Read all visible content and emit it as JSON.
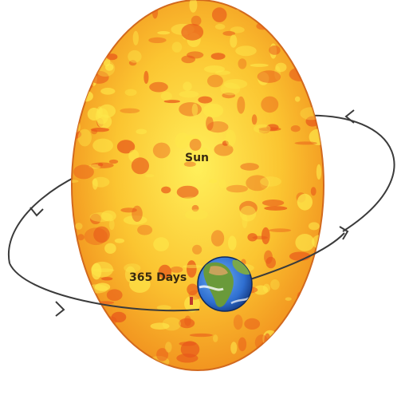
{
  "sun": {
    "label": "Sun"
  },
  "earth": {
    "orbit_label": "365 Days"
  },
  "colors": {
    "sun_base": "#f7a21b",
    "sun_spot_dark": "#e8561a",
    "sun_spot_light": "#fde84a",
    "orbit": "#3b3b3b",
    "ocean": "#2f6fd1",
    "land": "#6a9a3a",
    "desert": "#c9a35b",
    "label_text": "#3a2a10"
  }
}
